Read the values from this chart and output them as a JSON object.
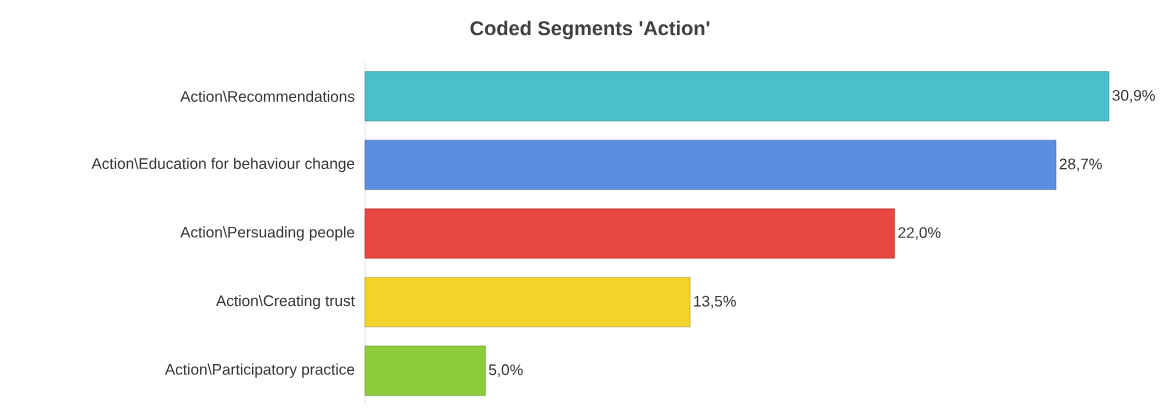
{
  "chart_data": {
    "type": "bar",
    "orientation": "horizontal",
    "title": "Coded Segments 'Action'",
    "categories": [
      "Action\\Recommendations",
      "Action\\Education for behaviour change",
      "Action\\Persuading people",
      "Action\\Creating trust",
      "Action\\Participatory practice"
    ],
    "values": [
      30.9,
      28.7,
      22.0,
      13.5,
      5.0
    ],
    "value_labels": [
      "30,9%",
      "28,7%",
      "22,0%",
      "13,5%",
      "5,0%"
    ],
    "colors": [
      "#4cbfcc",
      "#5a8ee0",
      "#e84640",
      "#f2d42c",
      "#8ccd3c"
    ],
    "tick_labels": "y"
  }
}
